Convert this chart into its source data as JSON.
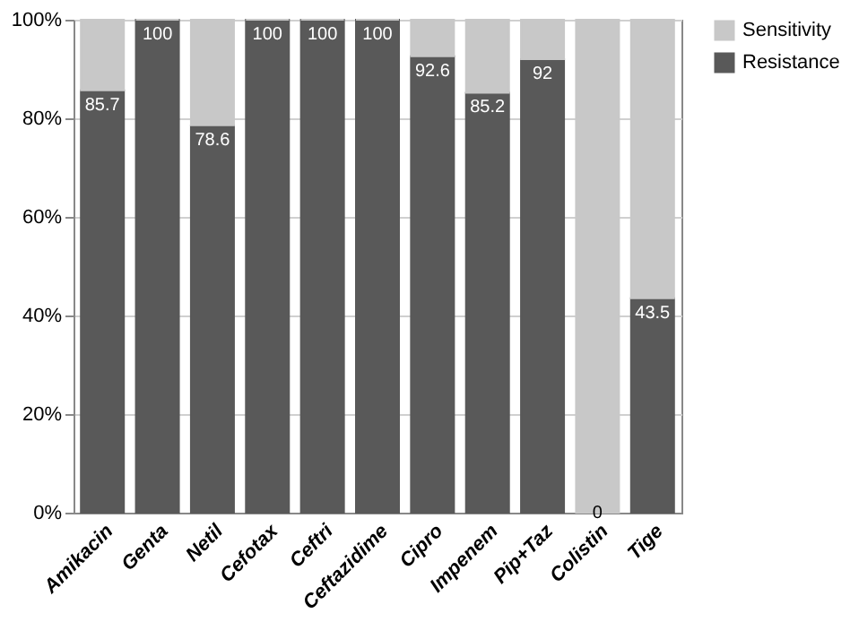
{
  "chart_data": {
    "type": "bar",
    "stacked": true,
    "categories": [
      "Amikacin",
      "Genta",
      "Netil",
      "Cefotax",
      "Ceftri",
      "Ceftazidime",
      "Cipro",
      "Impenem",
      "Pip+Taz",
      "Colistin",
      "Tige"
    ],
    "series": [
      {
        "name": "Resistance",
        "color": "#595959",
        "values": [
          85.7,
          100,
          78.6,
          100,
          100,
          100,
          92.6,
          85.2,
          92,
          0,
          43.5
        ],
        "value_labels": [
          "85.7",
          "100",
          "78.6",
          "100",
          "100",
          "100",
          "92.6",
          "85.2",
          "92",
          "0",
          "43.5"
        ]
      },
      {
        "name": "Sensitivity",
        "color": "#c8c8c8",
        "values": [
          14.3,
          0,
          21.4,
          0,
          0,
          0,
          7.4,
          14.8,
          8,
          100,
          56.5
        ]
      }
    ],
    "ylim": [
      0,
      100
    ],
    "yticks": [
      {
        "value": 0,
        "label": "0%"
      },
      {
        "value": 20,
        "label": "20%"
      },
      {
        "value": 40,
        "label": "40%"
      },
      {
        "value": 60,
        "label": "60%"
      },
      {
        "value": 80,
        "label": "80%"
      },
      {
        "value": 100,
        "label": "100%"
      }
    ],
    "grid": "y",
    "legend": "right"
  }
}
